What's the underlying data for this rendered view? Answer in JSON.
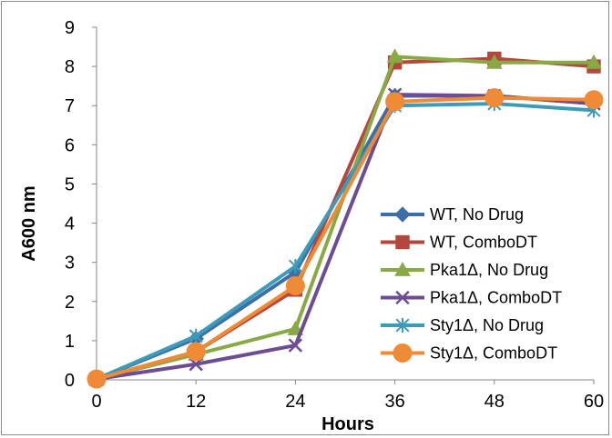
{
  "chart_data": {
    "type": "line",
    "title": "",
    "xlabel": "Hours",
    "ylabel": "A600 nm",
    "x": [
      0,
      12,
      24,
      36,
      48,
      60
    ],
    "xticks": [
      "0",
      "12",
      "24",
      "36",
      "48",
      "60"
    ],
    "yticks": [
      "0",
      "1",
      "2",
      "3",
      "4",
      "5",
      "6",
      "7",
      "8",
      "9"
    ],
    "xlim": [
      0,
      60
    ],
    "ylim": [
      0,
      9
    ],
    "grid": false,
    "legend_position": "right",
    "series": [
      {
        "name": "WT, No Drug",
        "values": [
          0.02,
          1.05,
          2.75,
          7.25,
          7.25,
          7.05
        ],
        "color": "#3d6ea8",
        "marker": "diamond"
      },
      {
        "name": "WT, ComboDT",
        "values": [
          0.02,
          0.72,
          2.3,
          8.1,
          8.2,
          8.0
        ],
        "color": "#b5463e",
        "marker": "square"
      },
      {
        "name": "Pka1Δ, No Drug",
        "values": [
          0.02,
          0.65,
          1.3,
          8.25,
          8.1,
          8.1
        ],
        "color": "#89a945",
        "marker": "triangle"
      },
      {
        "name": "Pka1Δ, ComboDT",
        "values": [
          0.02,
          0.4,
          0.88,
          7.28,
          7.25,
          7.05
        ],
        "color": "#6e4c94",
        "marker": "x"
      },
      {
        "name": "Sty1Δ, No Drug",
        "values": [
          0.02,
          1.12,
          2.9,
          7.0,
          7.05,
          6.88
        ],
        "color": "#3c9bb8",
        "marker": "star"
      },
      {
        "name": "Sty1Δ, ComboDT",
        "values": [
          0.02,
          0.72,
          2.4,
          7.1,
          7.2,
          7.15
        ],
        "color": "#ef8b36",
        "marker": "circle"
      }
    ]
  }
}
